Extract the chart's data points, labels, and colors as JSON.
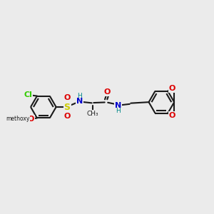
{
  "bg_color": "#ebebeb",
  "bond_color": "#1a1a1a",
  "cl_color": "#33cc00",
  "o_color": "#dd0000",
  "s_color": "#cccc00",
  "n_color": "#0000cc",
  "h_color": "#008888",
  "methoxy_color": "#1a1a1a",
  "lw": 1.5,
  "fs": 8.0,
  "r": 0.6,
  "figsize": [
    3.0,
    3.0
  ],
  "dpi": 100,
  "xlim": [
    0,
    10
  ],
  "ylim": [
    2,
    8
  ]
}
